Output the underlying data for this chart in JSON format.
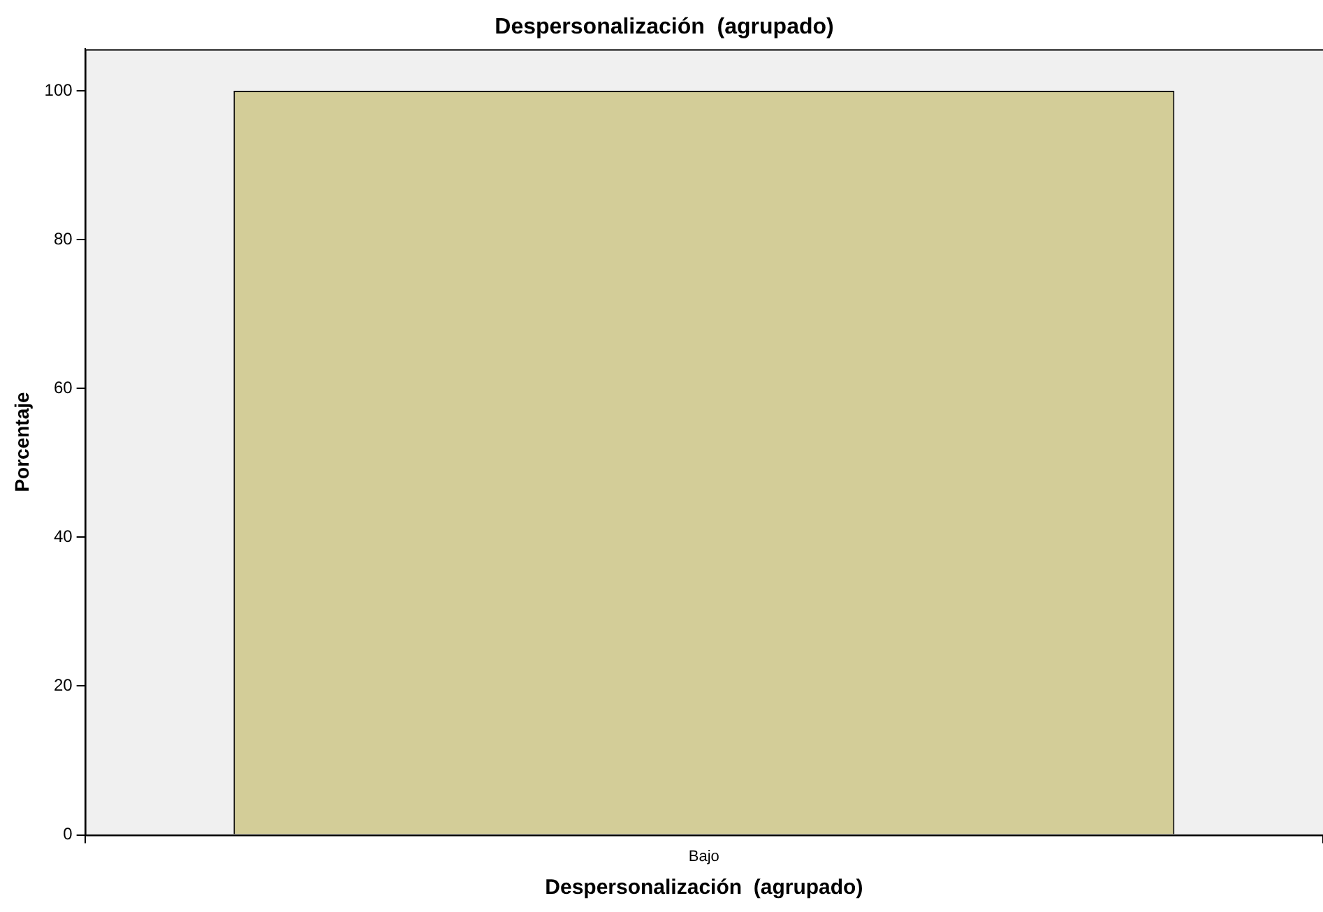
{
  "chart_data": {
    "type": "bar",
    "title": "Despersonalización  (agrupado)",
    "xlabel": "Despersonalización  (agrupado)",
    "ylabel": "Porcentaje",
    "categories": [
      "Bajo"
    ],
    "values": [
      100
    ],
    "color": "#d3cd98",
    "ylim": [
      0,
      105.6
    ],
    "yticks": [
      0,
      20,
      40,
      60,
      80,
      100
    ],
    "grid": false,
    "legend": false
  }
}
